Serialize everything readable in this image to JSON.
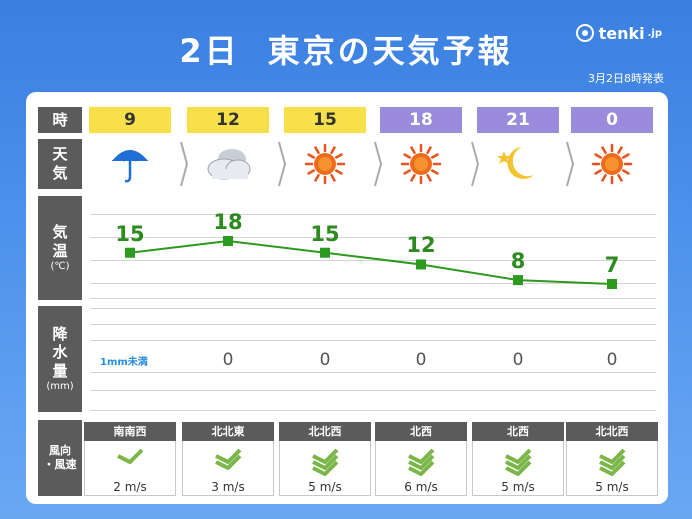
{
  "header": {
    "title_day": "2日",
    "title_text": "東京の天気予報",
    "brand": "tenki",
    "brand_suffix": ".jp",
    "issued": "3月2日8時発表"
  },
  "labels": {
    "time": "時",
    "weather_1": "天",
    "weather_2": "気",
    "temp_1": "気",
    "temp_2": "温",
    "temp_unit": "(℃)",
    "precip_1": "降",
    "precip_2": "水",
    "precip_3": "量",
    "precip_unit": "(mm)",
    "wind_1": "風向",
    "wind_2": "・風速"
  },
  "forecast": [
    {
      "hour": "9",
      "period": "day",
      "weather": "rain-umbrella-icon",
      "temp": 15,
      "precip": "1mm未満",
      "wind_dir": "南南西",
      "wind_speed": "2 m/s"
    },
    {
      "hour": "12",
      "period": "day",
      "weather": "cloudy-icon",
      "temp": 18,
      "precip": "0",
      "wind_dir": "北北東",
      "wind_speed": "3 m/s"
    },
    {
      "hour": "15",
      "period": "day",
      "weather": "sunny-icon",
      "temp": 15,
      "precip": "0",
      "wind_dir": "北北西",
      "wind_speed": "5 m/s"
    },
    {
      "hour": "18",
      "period": "night",
      "weather": "sunny-icon",
      "temp": 12,
      "precip": "0",
      "wind_dir": "北西",
      "wind_speed": "6 m/s"
    },
    {
      "hour": "21",
      "period": "night",
      "weather": "moon-icon",
      "temp": 8,
      "precip": "0",
      "wind_dir": "北西",
      "wind_speed": "5 m/s"
    },
    {
      "hour": "0",
      "period": "night",
      "weather": "sunny-icon",
      "temp": 7,
      "precip": "0",
      "wind_dir": "北北西",
      "wind_speed": "5 m/s"
    }
  ],
  "colors": {
    "day": "#f7e04a",
    "night": "#9a8bdc",
    "temp_line": "#2c9a1e",
    "wind_arrow": "#7ab648"
  }
}
